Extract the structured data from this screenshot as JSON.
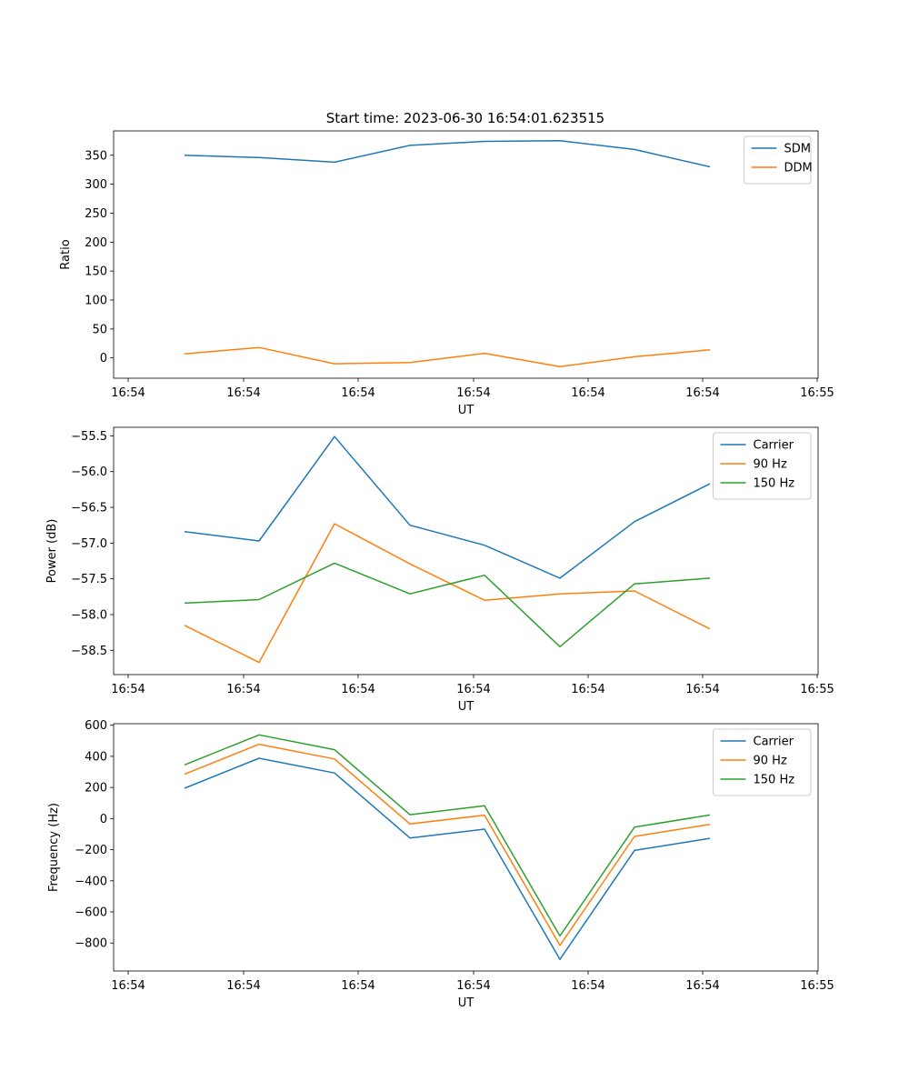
{
  "title": "Start time: 2023-06-30 16:54:01.623515",
  "chart_data": [
    {
      "type": "line",
      "title": "Start time: 2023-06-30 16:54:01.623515",
      "xlabel": "UT",
      "ylabel": "Ratio",
      "xticks": [
        "16:54",
        "16:54",
        "16:54",
        "16:54",
        "16:54",
        "16:54",
        "16:55"
      ],
      "yticks": [
        0,
        50,
        100,
        150,
        200,
        250,
        300,
        350
      ],
      "ylim": [
        -35,
        392
      ],
      "grid": false,
      "legend": "top-right",
      "series": [
        {
          "name": "SDM",
          "color": "#1f77b4",
          "values": [
            350,
            346,
            338,
            367,
            374,
            375,
            360,
            330
          ]
        },
        {
          "name": "DDM",
          "color": "#ff7f0e",
          "values": [
            7,
            18,
            -10,
            -8,
            8,
            -15,
            2,
            14
          ]
        }
      ]
    },
    {
      "type": "line",
      "title": "",
      "xlabel": "UT",
      "ylabel": "Power (dB)",
      "xticks": [
        "16:54",
        "16:54",
        "16:54",
        "16:54",
        "16:54",
        "16:54",
        "16:55"
      ],
      "yticks": [
        -58.5,
        -58.0,
        -57.5,
        -57.0,
        -56.5,
        -56.0,
        -55.5
      ],
      "ylim": [
        -58.84,
        -55.38
      ],
      "grid": false,
      "legend": "top-right",
      "series": [
        {
          "name": "Carrier",
          "color": "#1f77b4",
          "values": [
            -56.84,
            -56.97,
            -55.51,
            -56.75,
            -57.03,
            -57.49,
            -56.7,
            -56.17
          ]
        },
        {
          "name": "90 Hz",
          "color": "#ff7f0e",
          "values": [
            -58.15,
            -58.67,
            -56.73,
            -57.29,
            -57.8,
            -57.71,
            -57.67,
            -58.2
          ]
        },
        {
          "name": "150 Hz",
          "color": "#2ca02c",
          "values": [
            -57.84,
            -57.79,
            -57.28,
            -57.71,
            -57.45,
            -58.45,
            -57.57,
            -57.49
          ]
        }
      ]
    },
    {
      "type": "line",
      "title": "",
      "xlabel": "UT",
      "ylabel": "Frequency (Hz)",
      "xticks": [
        "16:54",
        "16:54",
        "16:54",
        "16:54",
        "16:54",
        "16:54",
        "16:55"
      ],
      "yticks": [
        -800,
        -600,
        -400,
        -200,
        0,
        200,
        400,
        600
      ],
      "ylim": [
        -980,
        610
      ],
      "grid": false,
      "legend": "top-right",
      "series": [
        {
          "name": "Carrier",
          "color": "#1f77b4",
          "values": [
            195,
            388,
            293,
            -125,
            -68,
            -905,
            -205,
            -127
          ]
        },
        {
          "name": "90 Hz",
          "color": "#ff7f0e",
          "values": [
            285,
            478,
            383,
            -35,
            22,
            -815,
            -115,
            -37
          ]
        },
        {
          "name": "150 Hz",
          "color": "#2ca02c",
          "values": [
            345,
            538,
            443,
            25,
            82,
            -755,
            -55,
            23
          ]
        }
      ]
    }
  ]
}
